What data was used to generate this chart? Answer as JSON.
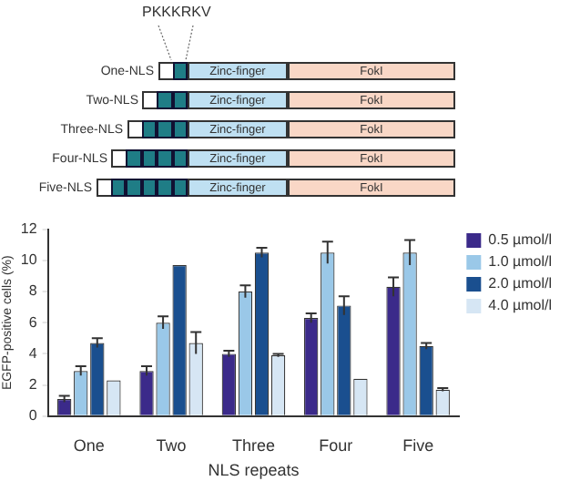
{
  "chart_data": {
    "type": "bar",
    "xlabel": "NLS repeats",
    "ylabel": "EGFP-positive cells (%)",
    "annotations": [
      "PKKKRKV",
      "One-NLS",
      "Zinc-finger",
      "FokI",
      "Two-NLS",
      "Zinc-finger",
      "FokI",
      "Three-NLS",
      "Zinc-finger",
      "FokI",
      "Four-NLS",
      "Zinc-finger",
      "FokI",
      "Five-NLS",
      "Zinc-finger",
      "FokI"
    ],
    "categories": [
      "One",
      "Two",
      "Three",
      "Four",
      "Five"
    ],
    "series": [
      {
        "name": "0.5 µmol/l",
        "color": "#3b2a8a",
        "values": [
          1.1,
          2.9,
          4.0,
          6.3,
          8.3
        ],
        "errors": [
          0.2,
          0.3,
          0.2,
          0.3,
          0.6
        ]
      },
      {
        "name": "1.0 µmol/l",
        "color": "#9ac8e8",
        "values": [
          2.9,
          6.0,
          8.0,
          10.5,
          10.5
        ],
        "errors": [
          0.3,
          0.4,
          0.4,
          0.7,
          0.8
        ]
      },
      {
        "name": "2.0 µmol/l",
        "color": "#1a4f8f",
        "values": [
          4.7,
          9.7,
          10.5,
          7.1,
          4.5
        ],
        "errors": [
          0.3,
          null,
          0.3,
          0.6,
          0.2
        ]
      },
      {
        "name": "4.0 µmol/l",
        "color": "#d6e6f4",
        "values": [
          2.3,
          4.7,
          3.9,
          2.4,
          1.7
        ],
        "errors": [
          null,
          0.7,
          0.1,
          null,
          0.1
        ]
      }
    ],
    "ylim": [
      0,
      12
    ],
    "yticks": [
      0,
      2,
      4,
      6,
      8,
      10,
      12
    ],
    "grid": false,
    "legend": "top right"
  }
}
